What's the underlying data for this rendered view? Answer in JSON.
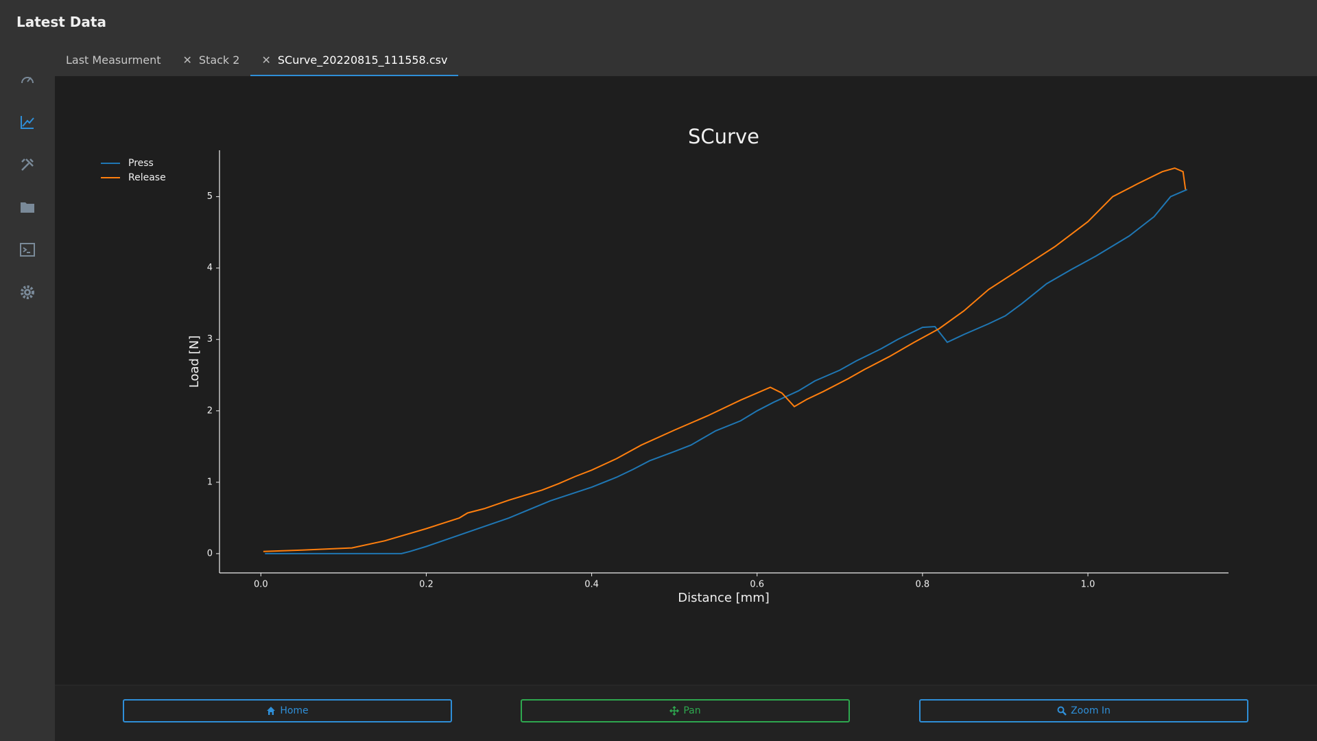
{
  "header": {
    "title": "Latest Data"
  },
  "tabs": [
    "Last Measurment",
    "Stack 2",
    "SCurve_20220815_111558.csv"
  ],
  "buttons": [
    "Home",
    "Pan",
    "Zoom In"
  ],
  "chart_data": {
    "type": "line",
    "title": "SCurve",
    "x_label": "Distance [mm]",
    "y_label": "Load [N]",
    "xlim": [
      -0.05,
      1.17
    ],
    "ylim": [
      -0.27,
      5.65
    ],
    "xticks": [
      {
        "value": 0,
        "label": "0.0"
      },
      0.2,
      0.4,
      0.6,
      0.8,
      {
        "value": 1,
        "label": "1.0"
      }
    ],
    "yticks": [
      0,
      1,
      2,
      3,
      4,
      5
    ],
    "legend": "upper left",
    "series": [
      {
        "name": "Press",
        "color": "#1f77b4",
        "x": [
          0.005,
          0.17,
          0.18,
          0.2,
          0.25,
          0.3,
          0.35,
          0.4,
          0.43,
          0.45,
          0.47,
          0.5,
          0.52,
          0.55,
          0.58,
          0.6,
          0.62,
          0.65,
          0.67,
          0.7,
          0.72,
          0.75,
          0.77,
          0.8,
          0.815,
          0.83,
          0.85,
          0.88,
          0.9,
          0.92,
          0.95,
          0.98,
          1.01,
          1.05,
          1.08,
          1.1,
          1.12
        ],
        "values": [
          0,
          0,
          0.03,
          0.1,
          0.3,
          0.5,
          0.74,
          0.93,
          1.07,
          1.18,
          1.3,
          1.43,
          1.52,
          1.72,
          1.86,
          2.0,
          2.12,
          2.28,
          2.42,
          2.57,
          2.7,
          2.87,
          3.0,
          3.17,
          3.18,
          2.96,
          3.07,
          3.22,
          3.33,
          3.5,
          3.78,
          3.98,
          4.17,
          4.45,
          4.72,
          5.0,
          5.1
        ]
      },
      {
        "name": "Release",
        "color": "#ff7f0e",
        "x": [
          0.003,
          0.05,
          0.11,
          0.15,
          0.2,
          0.24,
          0.25,
          0.27,
          0.3,
          0.34,
          0.36,
          0.38,
          0.4,
          0.43,
          0.46,
          0.5,
          0.54,
          0.58,
          0.6,
          0.616,
          0.63,
          0.645,
          0.66,
          0.68,
          0.71,
          0.73,
          0.76,
          0.79,
          0.82,
          0.85,
          0.88,
          0.92,
          0.96,
          1.0,
          1.03,
          1.06,
          1.09,
          1.105,
          1.115,
          1.118
        ],
        "values": [
          0.03,
          0.05,
          0.08,
          0.18,
          0.35,
          0.5,
          0.57,
          0.63,
          0.75,
          0.89,
          0.98,
          1.08,
          1.17,
          1.33,
          1.52,
          1.73,
          1.93,
          2.15,
          2.25,
          2.33,
          2.25,
          2.06,
          2.16,
          2.27,
          2.45,
          2.58,
          2.76,
          2.96,
          3.15,
          3.4,
          3.7,
          4.0,
          4.3,
          4.65,
          5.0,
          5.18,
          5.35,
          5.4,
          5.35,
          5.1
        ]
      }
    ]
  }
}
